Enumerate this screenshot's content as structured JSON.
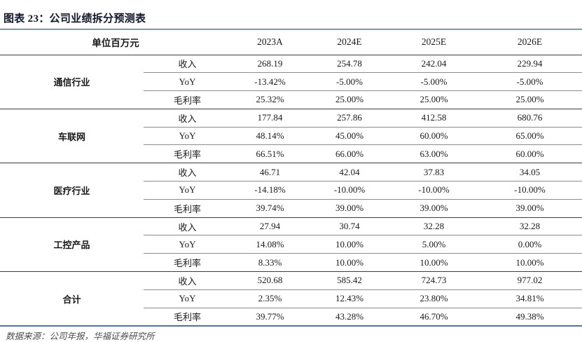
{
  "page": {
    "title": "图表 23：公司业绩拆分预测表",
    "footer": "数据来源：公司年报，华福证券研究所"
  },
  "colors": {
    "accent_blue": "#3a63a9",
    "accent_blue_light": "#b9c8e4",
    "bottom_rule_blue": "#4a71b6",
    "line_dark": "#3d3d3d",
    "line_light": "#8c8c8c",
    "source_gray": "#4d4d4d"
  },
  "chart_data": {
    "type": "table",
    "title": "公司业绩拆分预测表",
    "unit_label": "单位百万元",
    "columns": [
      "2023A",
      "2024E",
      "2025E",
      "2026E"
    ],
    "groups": [
      {
        "name": "通信行业",
        "rows": [
          {
            "label": "收入",
            "values": [
              "268.19",
              "254.78",
              "242.04",
              "229.94"
            ]
          },
          {
            "label": "YoY",
            "values": [
              "-13.42%",
              "-5.00%",
              "-5.00%",
              "-5.00%"
            ]
          },
          {
            "label": "毛利率",
            "values": [
              "25.32%",
              "25.00%",
              "25.00%",
              "25.00%"
            ]
          }
        ]
      },
      {
        "name": "车联网",
        "rows": [
          {
            "label": "收入",
            "values": [
              "177.84",
              "257.86",
              "412.58",
              "680.76"
            ]
          },
          {
            "label": "YoY",
            "values": [
              "48.14%",
              "45.00%",
              "60.00%",
              "65.00%"
            ]
          },
          {
            "label": "毛利率",
            "values": [
              "66.51%",
              "66.00%",
              "63.00%",
              "60.00%"
            ]
          }
        ]
      },
      {
        "name": "医疗行业",
        "rows": [
          {
            "label": "收入",
            "values": [
              "46.71",
              "42.04",
              "37.83",
              "34.05"
            ]
          },
          {
            "label": "YoY",
            "values": [
              "-14.18%",
              "-10.00%",
              "-10.00%",
              "-10.00%"
            ]
          },
          {
            "label": "毛利率",
            "values": [
              "39.74%",
              "39.00%",
              "39.00%",
              "39.00%"
            ]
          }
        ]
      },
      {
        "name": "工控产品",
        "rows": [
          {
            "label": "收入",
            "values": [
              "27.94",
              "30.74",
              "32.28",
              "32.28"
            ]
          },
          {
            "label": "YoY",
            "values": [
              "14.08%",
              "10.00%",
              "5.00%",
              "0.00%"
            ]
          },
          {
            "label": "毛利率",
            "values": [
              "8.33%",
              "10.00%",
              "10.00%",
              "10.00%"
            ]
          }
        ]
      },
      {
        "name": "合计",
        "rows": [
          {
            "label": "收入",
            "values": [
              "520.68",
              "585.42",
              "724.73",
              "977.02"
            ]
          },
          {
            "label": "YoY",
            "values": [
              "2.35%",
              "12.43%",
              "23.80%",
              "34.81%"
            ]
          },
          {
            "label": "毛利率",
            "values": [
              "39.77%",
              "43.28%",
              "46.70%",
              "49.38%"
            ]
          }
        ]
      }
    ]
  }
}
